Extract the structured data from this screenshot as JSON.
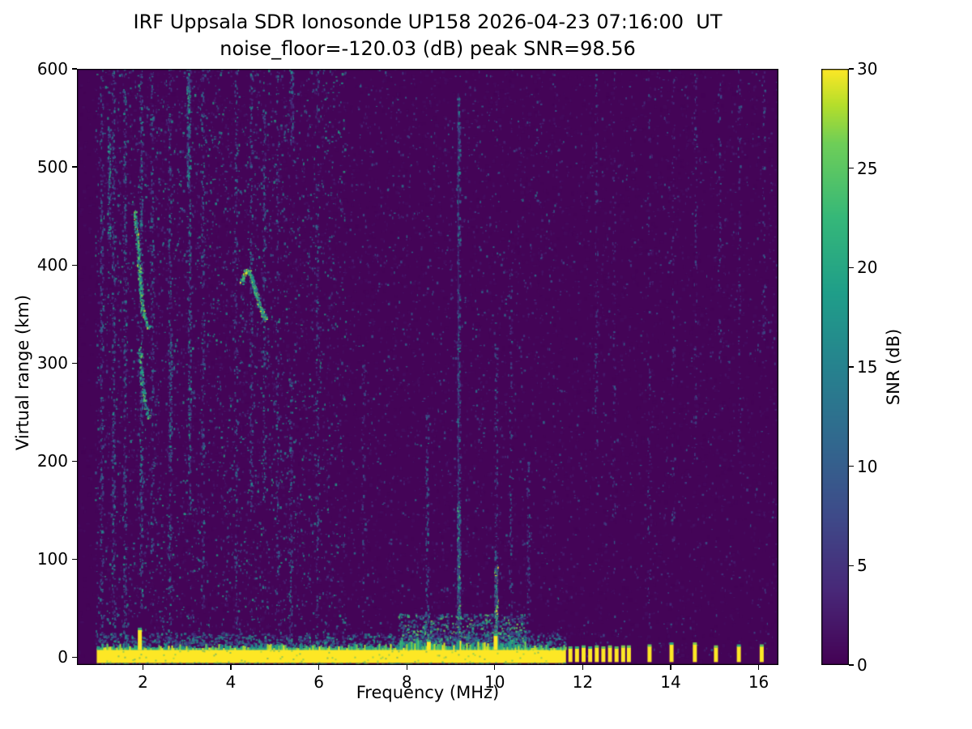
{
  "chart_data": {
    "type": "heatmap",
    "title": "IRF Uppsala SDR Ionosonde UP158 2026-04-23 07:16:00  UT",
    "subtitle": "noise_floor=-120.03 (dB) peak SNR=98.56",
    "station": "UP158",
    "timestamp_ut": "2026-04-23 07:16:00",
    "noise_floor_db": -120.03,
    "peak_snr_db": 98.56,
    "xlabel": "Frequency (MHz)",
    "ylabel": "Virtual range (km)",
    "xlim": [
      0.5,
      16.45
    ],
    "ylim": [
      -8,
      600
    ],
    "x_ticks": [
      2,
      4,
      6,
      8,
      10,
      12,
      14,
      16
    ],
    "y_ticks": [
      0,
      100,
      200,
      300,
      400,
      500,
      600
    ],
    "grid": false,
    "colorbar": {
      "label": "SNR (dB)",
      "min": 0,
      "max": 30,
      "ticks": [
        0,
        5,
        10,
        15,
        20,
        25,
        30
      ],
      "colormap": "viridis"
    },
    "colormap_stops": [
      [
        0.0,
        68,
        1,
        84
      ],
      [
        0.125,
        72,
        40,
        120
      ],
      [
        0.25,
        62,
        74,
        137
      ],
      [
        0.375,
        49,
        104,
        142
      ],
      [
        0.5,
        38,
        130,
        142
      ],
      [
        0.625,
        31,
        158,
        137
      ],
      [
        0.75,
        53,
        183,
        121
      ],
      [
        0.875,
        110,
        206,
        88
      ],
      [
        0.94,
        181,
        222,
        43
      ],
      [
        1.0,
        253,
        231,
        37
      ]
    ],
    "features": {
      "ground_pulse_band": {
        "freq_start_mhz": 0.95,
        "freq_end_mhz": 11.62,
        "center_range_km": 0,
        "top_range_km": 9,
        "bottom_range_km": -6,
        "snr_db": 30
      },
      "band_spikes": [
        {
          "f": 1.93,
          "top_km": 28
        },
        {
          "f": 8.5,
          "top_km": 16
        },
        {
          "f": 10.02,
          "top_km": 22
        }
      ],
      "discrete_pulses": [
        {
          "f": 11.72,
          "top_km": 9
        },
        {
          "f": 11.87,
          "top_km": 9
        },
        {
          "f": 12.02,
          "top_km": 10
        },
        {
          "f": 12.17,
          "top_km": 9
        },
        {
          "f": 12.32,
          "top_km": 10
        },
        {
          "f": 12.47,
          "top_km": 9
        },
        {
          "f": 12.62,
          "top_km": 10
        },
        {
          "f": 12.77,
          "top_km": 9
        },
        {
          "f": 12.92,
          "top_km": 10
        },
        {
          "f": 13.05,
          "top_km": 10
        },
        {
          "f": 13.52,
          "top_km": 11
        },
        {
          "f": 14.02,
          "top_km": 13
        },
        {
          "f": 14.55,
          "top_km": 13
        },
        {
          "f": 15.03,
          "top_km": 10
        },
        {
          "f": 15.55,
          "top_km": 11
        },
        {
          "f": 16.07,
          "top_km": 11
        }
      ],
      "echo_traces": [
        {
          "name": "echo-2MHz-upper",
          "points": [
            [
              1.8,
              455
            ],
            [
              1.85,
              430
            ],
            [
              1.9,
              400
            ],
            [
              1.95,
              368
            ],
            [
              2.0,
              350
            ],
            [
              2.08,
              340
            ],
            [
              2.15,
              336
            ]
          ],
          "intensity": 0.85,
          "count": 240
        },
        {
          "name": "echo-2MHz-lower",
          "points": [
            [
              1.9,
              315
            ],
            [
              1.97,
              282
            ],
            [
              2.05,
              258
            ],
            [
              2.12,
              243
            ]
          ],
          "intensity": 0.7,
          "count": 110
        },
        {
          "name": "echo-4.5MHz-cusp",
          "points": [
            [
              4.22,
              382
            ],
            [
              4.32,
              395
            ],
            [
              4.42,
              393
            ],
            [
              4.52,
              378
            ],
            [
              4.62,
              362
            ],
            [
              4.72,
              350
            ],
            [
              4.78,
              344
            ]
          ],
          "intensity": 0.9,
          "count": 250
        }
      ],
      "speckle_fields": [
        {
          "f0": 0.9,
          "f1": 6.6,
          "count": 5200,
          "max": 0.62,
          "pow": 2.4
        },
        {
          "f0": 6.6,
          "f1": 11.6,
          "count": 2200,
          "max": 0.42,
          "pow": 2.8
        },
        {
          "f0": 11.6,
          "f1": 16.4,
          "count": 1400,
          "max": 0.32,
          "pow": 2.8
        }
      ],
      "noise_streaks": [
        {
          "f": 1.05,
          "r0": 0,
          "r1": 600,
          "count": 260,
          "intensity": 0.45
        },
        {
          "f": 1.22,
          "r0": 420,
          "r1": 540,
          "count": 120,
          "intensity": 0.6
        },
        {
          "f": 1.32,
          "r0": 0,
          "r1": 600,
          "count": 300,
          "intensity": 0.5
        },
        {
          "f": 1.58,
          "r0": 0,
          "r1": 600,
          "count": 280,
          "intensity": 0.5
        },
        {
          "f": 1.95,
          "r0": 50,
          "r1": 600,
          "count": 320,
          "intensity": 0.55
        },
        {
          "f": 2.2,
          "r0": 100,
          "r1": 600,
          "count": 180,
          "intensity": 0.45
        },
        {
          "f": 2.62,
          "r0": 200,
          "r1": 320,
          "count": 80,
          "intensity": 0.6
        },
        {
          "f": 2.6,
          "r0": 0,
          "r1": 600,
          "count": 220,
          "intensity": 0.5
        },
        {
          "f": 3.02,
          "r0": 480,
          "r1": 600,
          "count": 140,
          "intensity": 0.65
        },
        {
          "f": 3.05,
          "r0": 150,
          "r1": 600,
          "count": 240,
          "intensity": 0.55
        },
        {
          "f": 3.35,
          "r0": 50,
          "r1": 600,
          "count": 200,
          "intensity": 0.45
        },
        {
          "f": 4.1,
          "r0": 0,
          "r1": 600,
          "count": 200,
          "intensity": 0.45
        },
        {
          "f": 4.45,
          "r0": 150,
          "r1": 600,
          "count": 200,
          "intensity": 0.5
        },
        {
          "f": 4.75,
          "r0": 150,
          "r1": 560,
          "count": 160,
          "intensity": 0.5
        },
        {
          "f": 5.05,
          "r0": 0,
          "r1": 600,
          "count": 150,
          "intensity": 0.4
        },
        {
          "f": 5.35,
          "r0": 0,
          "r1": 300,
          "count": 120,
          "intensity": 0.4
        },
        {
          "f": 5.38,
          "r0": 520,
          "r1": 600,
          "count": 70,
          "intensity": 0.5
        },
        {
          "f": 5.95,
          "r0": 0,
          "r1": 600,
          "count": 130,
          "intensity": 0.4
        },
        {
          "f": 7.0,
          "r0": 0,
          "r1": 300,
          "count": 70,
          "intensity": 0.3
        },
        {
          "f": 8.45,
          "r0": 0,
          "r1": 250,
          "count": 120,
          "intensity": 0.45
        },
        {
          "f": 10.35,
          "r0": 0,
          "r1": 400,
          "count": 110,
          "intensity": 0.4
        },
        {
          "f": 10.75,
          "r0": 0,
          "r1": 200,
          "count": 80,
          "intensity": 0.35
        },
        {
          "f": 12.3,
          "r0": 200,
          "r1": 600,
          "count": 90,
          "intensity": 0.3
        },
        {
          "f": 12.7,
          "r0": 100,
          "r1": 600,
          "count": 70,
          "intensity": 0.28
        },
        {
          "f": 13.5,
          "r0": 0,
          "r1": 600,
          "count": 80,
          "intensity": 0.28
        },
        {
          "f": 14.05,
          "r0": 100,
          "r1": 600,
          "count": 70,
          "intensity": 0.28
        },
        {
          "f": 14.55,
          "r0": 200,
          "r1": 600,
          "count": 80,
          "intensity": 0.3
        },
        {
          "f": 15.1,
          "r0": 300,
          "r1": 600,
          "count": 60,
          "intensity": 0.28
        },
        {
          "f": 15.55,
          "r0": 200,
          "r1": 600,
          "count": 70,
          "intensity": 0.28
        },
        {
          "f": 16.1,
          "r0": 300,
          "r1": 600,
          "count": 60,
          "intensity": 0.3
        }
      ],
      "interference_lines": [
        {
          "f": 9.17,
          "r0": 0,
          "r1": 575,
          "count": 420,
          "intensity": 0.5,
          "solid": true
        },
        {
          "f": 9.17,
          "r0": 40,
          "r1": 160,
          "count": 180,
          "intensity": 0.8
        },
        {
          "f": 10.02,
          "r0": 0,
          "r1": 95,
          "count": 300,
          "intensity": 0.95
        },
        {
          "f": 10.02,
          "r0": 95,
          "r1": 320,
          "count": 90,
          "intensity": 0.4
        }
      ],
      "fuzz_regions": [
        {
          "freq_start": 0.95,
          "freq_end": 11.6,
          "range_max_km": 25,
          "intensity": 0.55,
          "count": 1400
        },
        {
          "freq_start": 7.8,
          "freq_end": 10.7,
          "range_max_km": 45,
          "intensity": 0.75,
          "count": 1000
        }
      ]
    }
  }
}
